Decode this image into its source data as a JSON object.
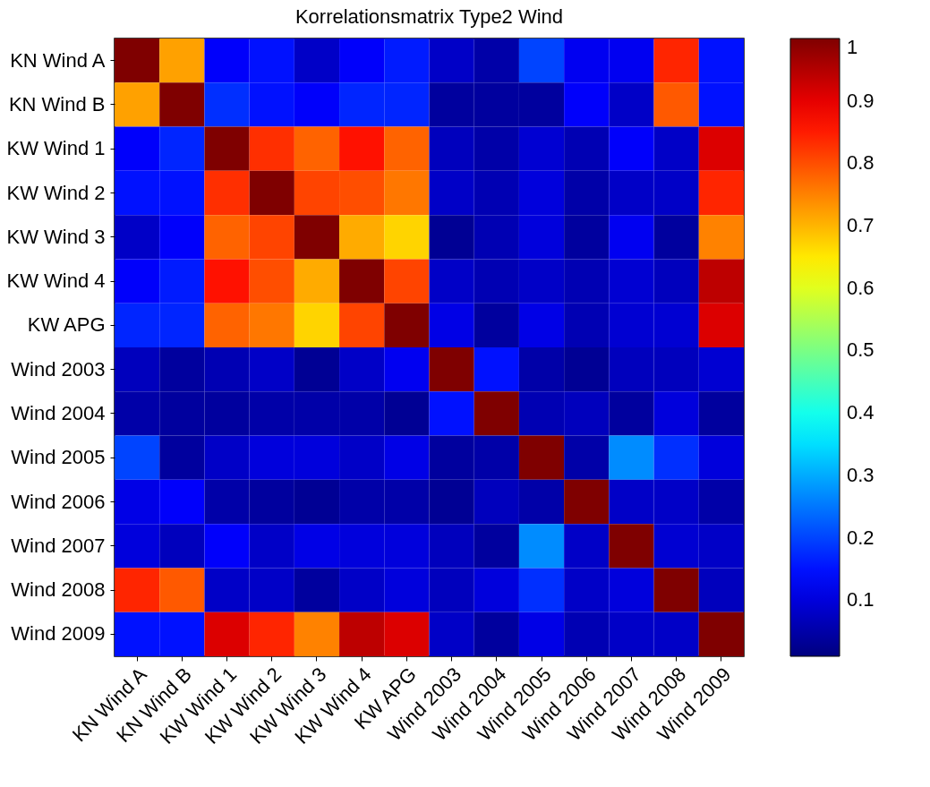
{
  "chart_data": {
    "type": "heatmap",
    "title": "Korrelationsmatrix Type2 Wind",
    "categories": [
      "KN Wind A",
      "KN Wind B",
      "KW Wind 1",
      "KW Wind 2",
      "KW Wind 3",
      "KW Wind 4",
      "KW APG",
      "Wind 2003",
      "Wind 2004",
      "Wind 2005",
      "Wind 2006",
      "Wind 2007",
      "Wind 2008",
      "Wind 2009"
    ],
    "y_categories": [
      "KN Wind A",
      "KN Wind B",
      "KW Wind 1",
      "KW Wind 2",
      "KW Wind 3",
      "KW Wind 4",
      "KW APG",
      "Wind 2003",
      "Wind 2004",
      "Wind 2005",
      "Wind 2006",
      "Wind 2007",
      "Wind 2008",
      "Wind 2009"
    ],
    "cells": [
      [
        1,
        0.72,
        0.13,
        0.15,
        0.08,
        0.13,
        0.16,
        0.08,
        0.05,
        0.2,
        0.12,
        0.12,
        0.84,
        0.15
      ],
      [
        0.72,
        1,
        0.18,
        0.15,
        0.13,
        0.17,
        0.17,
        0.04,
        0.04,
        0.04,
        0.13,
        0.08,
        0.79,
        0.15
      ],
      [
        0.13,
        0.17,
        1,
        0.83,
        0.78,
        0.86,
        0.78,
        0.07,
        0.05,
        0.09,
        0.06,
        0.13,
        0.08,
        0.91
      ],
      [
        0.15,
        0.15,
        0.83,
        1,
        0.81,
        0.8,
        0.76,
        0.08,
        0.06,
        0.1,
        0.05,
        0.08,
        0.08,
        0.84
      ],
      [
        0.08,
        0.13,
        0.78,
        0.81,
        1,
        0.71,
        0.67,
        0.03,
        0.06,
        0.1,
        0.04,
        0.12,
        0.04,
        0.75
      ],
      [
        0.13,
        0.16,
        0.86,
        0.8,
        0.71,
        1,
        0.81,
        0.08,
        0.06,
        0.08,
        0.06,
        0.09,
        0.07,
        0.94
      ],
      [
        0.17,
        0.17,
        0.78,
        0.76,
        0.67,
        0.81,
        1,
        0.11,
        0.04,
        0.11,
        0.06,
        0.09,
        0.09,
        0.91
      ],
      [
        0.07,
        0.04,
        0.06,
        0.08,
        0.03,
        0.08,
        0.12,
        1,
        0.15,
        0.05,
        0.03,
        0.07,
        0.07,
        0.09
      ],
      [
        0.05,
        0.04,
        0.04,
        0.05,
        0.05,
        0.05,
        0.03,
        0.15,
        1,
        0.06,
        0.07,
        0.04,
        0.1,
        0.04
      ],
      [
        0.2,
        0.04,
        0.08,
        0.1,
        0.1,
        0.08,
        0.11,
        0.04,
        0.05,
        1,
        0.05,
        0.27,
        0.18,
        0.1
      ],
      [
        0.11,
        0.13,
        0.05,
        0.04,
        0.03,
        0.05,
        0.05,
        0.03,
        0.07,
        0.05,
        1,
        0.08,
        0.08,
        0.05
      ],
      [
        0.1,
        0.07,
        0.13,
        0.08,
        0.11,
        0.1,
        0.1,
        0.07,
        0.04,
        0.27,
        0.08,
        1,
        0.09,
        0.08
      ],
      [
        0.84,
        0.79,
        0.08,
        0.08,
        0.04,
        0.08,
        0.1,
        0.07,
        0.1,
        0.18,
        0.08,
        0.1,
        1,
        0.07
      ],
      [
        0.15,
        0.15,
        0.91,
        0.84,
        0.75,
        0.94,
        0.91,
        0.08,
        0.04,
        0.11,
        0.06,
        0.08,
        0.08,
        1
      ]
    ],
    "clim": [
      0.01,
      1
    ],
    "cticks": [
      0.1,
      0.2,
      0.3,
      0.4,
      0.5,
      0.6,
      0.7,
      0.8,
      0.9,
      1
    ]
  }
}
